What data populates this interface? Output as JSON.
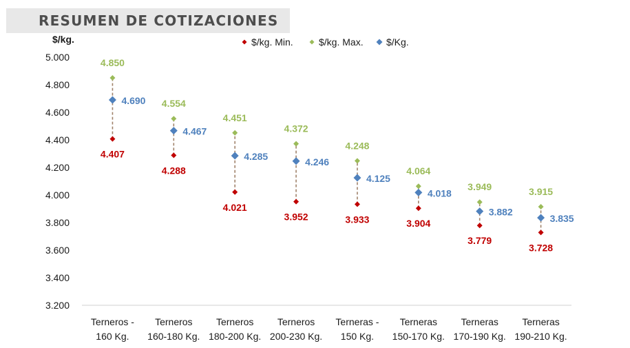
{
  "header": {
    "title": "RESUMEN DE COTIZACIONES"
  },
  "chart_data": {
    "type": "scatter",
    "ylabel": "$/kg.",
    "ylim": [
      3200,
      5000
    ],
    "yticks": [
      3200,
      3400,
      3600,
      3800,
      4000,
      4200,
      4400,
      4600,
      4800,
      5000
    ],
    "ytick_labels": [
      "3.200",
      "3.400",
      "3.600",
      "3.800",
      "4.000",
      "4.200",
      "4.400",
      "4.600",
      "4.800",
      "5.000"
    ],
    "legend_position": "top",
    "grid": false,
    "categories": [
      [
        "Terneros -",
        "160 Kg."
      ],
      [
        "Terneros",
        "160-180 Kg."
      ],
      [
        "Terneros",
        "180-200 Kg."
      ],
      [
        "Terneros",
        "200-230 Kg."
      ],
      [
        "Terneras -",
        "150 Kg."
      ],
      [
        "Terneras",
        "150-170 Kg."
      ],
      [
        "Terneras",
        "170-190 Kg."
      ],
      [
        "Terneras",
        "190-210 Kg."
      ]
    ],
    "series": [
      {
        "name": "$/kg. Min.",
        "color": "#c00000",
        "values": [
          4407,
          4288,
          4021,
          3952,
          3933,
          3904,
          3779,
          3728
        ],
        "labels": [
          "4.407",
          "4.288",
          "4.021",
          "3.952",
          "3.933",
          "3.904",
          "3.779",
          "3.728"
        ]
      },
      {
        "name": "$/kg. Max.",
        "color": "#9bbb59",
        "values": [
          4850,
          4554,
          4451,
          4372,
          4248,
          4064,
          3949,
          3915
        ],
        "labels": [
          "4.850",
          "4.554",
          "4.451",
          "4.372",
          "4.248",
          "4.064",
          "3.949",
          "3.915"
        ]
      },
      {
        "name": "$/Kg.",
        "color": "#4f81bd",
        "values": [
          4690,
          4467,
          4285,
          4246,
          4125,
          4018,
          3882,
          3835
        ],
        "labels": [
          "4.690",
          "4.467",
          "4.285",
          "4.246",
          "4.125",
          "4.018",
          "3.882",
          "3.835"
        ]
      }
    ],
    "range_line_color": "#a0826a"
  }
}
